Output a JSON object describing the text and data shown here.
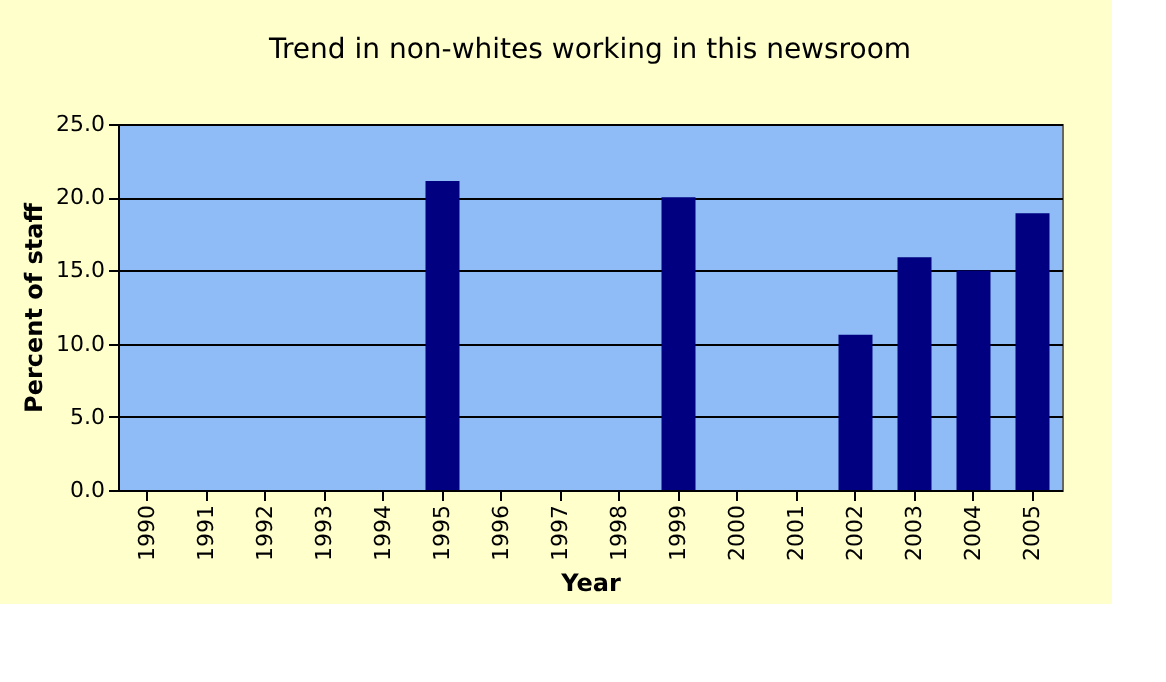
{
  "chart_data": {
    "type": "bar",
    "title": "Trend in non-whites working in this newsroom",
    "xlabel": "Year",
    "ylabel": "Percent of staff",
    "categories": [
      "1990",
      "1991",
      "1992",
      "1993",
      "1994",
      "1995",
      "1996",
      "1997",
      "1998",
      "1999",
      "2000",
      "2001",
      "2002",
      "2003",
      "2004",
      "2005"
    ],
    "values": [
      null,
      null,
      null,
      null,
      null,
      21.1,
      null,
      null,
      null,
      20.0,
      null,
      null,
      10.6,
      15.9,
      15.0,
      18.9
    ],
    "color": "#000080",
    "ylim": [
      0,
      25
    ],
    "yticks": [
      {
        "value": 0,
        "label": "0.0"
      },
      {
        "value": 5,
        "label": "5.0"
      },
      {
        "value": 10,
        "label": "10.0"
      },
      {
        "value": 15,
        "label": "15.0"
      },
      {
        "value": 20,
        "label": "20.0"
      },
      {
        "value": 25,
        "label": "25.0"
      }
    ],
    "grid": "y"
  }
}
